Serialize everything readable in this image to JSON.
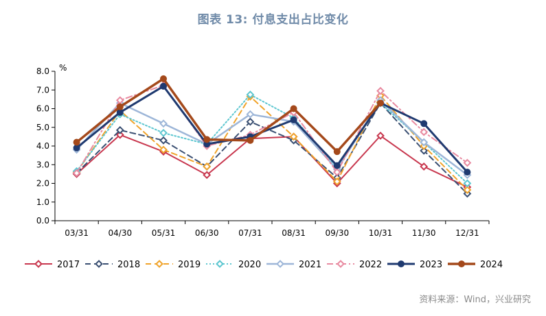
{
  "title": "图表 13: 付息支出占比变化",
  "source": "资料来源：Wind，兴业研究",
  "chart_data": {
    "type": "line",
    "unit": "%",
    "categories": [
      "03/31",
      "04/30",
      "05/31",
      "06/30",
      "07/31",
      "08/31",
      "09/30",
      "10/31",
      "11/30",
      "12/31"
    ],
    "ylim": [
      0,
      8
    ],
    "yticks": [
      "0.0",
      "1.0",
      "2.0",
      "3.0",
      "4.0",
      "5.0",
      "6.0",
      "7.0",
      "8.0"
    ],
    "grid": false,
    "legend_position": "bottom",
    "series": [
      {
        "name": "2017",
        "color": "#c8374e",
        "dash": "solid",
        "marker": "diamond-open",
        "width": 2,
        "values": [
          2.5,
          4.6,
          3.7,
          2.45,
          4.4,
          4.5,
          2.0,
          4.55,
          2.9,
          1.8
        ]
      },
      {
        "name": "2018",
        "color": "#3a4f72",
        "dash": "dash",
        "marker": "diamond-open",
        "width": 2,
        "values": [
          2.55,
          4.85,
          4.3,
          2.9,
          5.3,
          4.3,
          2.3,
          6.3,
          3.75,
          1.45
        ]
      },
      {
        "name": "2019",
        "color": "#f0a32a",
        "dash": "dash",
        "marker": "diamond-open",
        "width": 2,
        "values": [
          2.6,
          5.9,
          3.8,
          2.9,
          6.65,
          4.5,
          2.1,
          6.7,
          4.0,
          1.65
        ]
      },
      {
        "name": "2020",
        "color": "#5cc6d0",
        "dash": "dot",
        "marker": "diamond-open",
        "width": 2,
        "values": [
          2.65,
          5.7,
          4.7,
          4.1,
          6.75,
          5.5,
          2.85,
          6.3,
          4.2,
          2.0
        ]
      },
      {
        "name": "2021",
        "color": "#9db6d8",
        "dash": "solid",
        "marker": "diamond-open",
        "width": 2.5,
        "values": [
          3.8,
          6.3,
          5.2,
          4.1,
          5.7,
          5.3,
          2.75,
          6.45,
          4.2,
          2.45
        ]
      },
      {
        "name": "2022",
        "color": "#e88aa0",
        "dash": "dashdot",
        "marker": "diamond-open",
        "width": 2,
        "values": [
          2.55,
          6.45,
          7.25,
          4.0,
          4.6,
          5.8,
          2.6,
          6.95,
          4.75,
          3.1
        ]
      },
      {
        "name": "2023",
        "color": "#1f3a70",
        "dash": "solid",
        "marker": "circle",
        "width": 3,
        "values": [
          3.9,
          5.8,
          7.2,
          4.1,
          4.5,
          5.4,
          2.95,
          6.3,
          5.2,
          2.6
        ]
      },
      {
        "name": "2024",
        "color": "#a4491b",
        "dash": "solid",
        "marker": "circle",
        "width": 3.5,
        "values": [
          4.2,
          6.1,
          7.6,
          4.35,
          4.3,
          6.0,
          3.7,
          6.3,
          null,
          null
        ]
      }
    ]
  }
}
